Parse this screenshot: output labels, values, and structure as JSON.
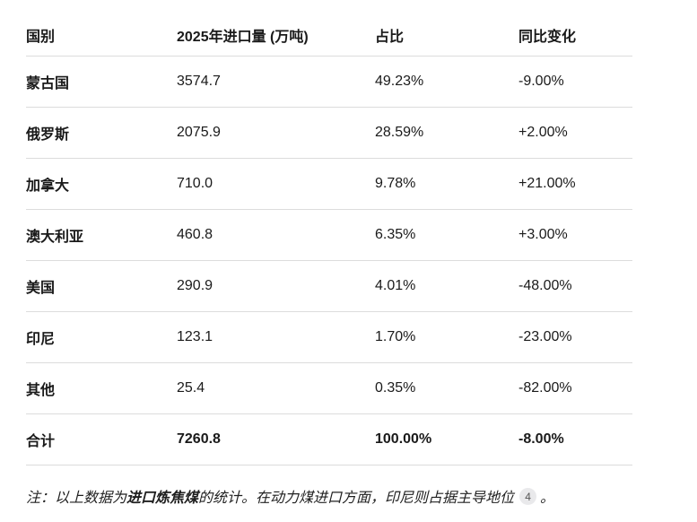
{
  "colors": {
    "background": "#ffffff",
    "text": "#1a1a1a",
    "divider": "#dcdcdc",
    "citation_badge_bg": "#e9e9eb",
    "citation_badge_text": "#555555"
  },
  "table": {
    "headers": [
      "国别",
      "2025年进口量 (万吨)",
      "占比",
      "同比变化"
    ],
    "rows": [
      {
        "country": "蒙古国",
        "volume": "3574.7",
        "share": "49.23%",
        "yoy": "-9.00%"
      },
      {
        "country": "俄罗斯",
        "volume": "2075.9",
        "share": "28.59%",
        "yoy": "+2.00%"
      },
      {
        "country": "加拿大",
        "volume": "710.0",
        "share": "9.78%",
        "yoy": "+21.00%"
      },
      {
        "country": "澳大利亚",
        "volume": "460.8",
        "share": "6.35%",
        "yoy": "+3.00%"
      },
      {
        "country": "美国",
        "volume": "290.9",
        "share": "4.01%",
        "yoy": "-48.00%"
      },
      {
        "country": "印尼",
        "volume": "123.1",
        "share": "1.70%",
        "yoy": "-23.00%"
      },
      {
        "country": "其他",
        "volume": "25.4",
        "share": "0.35%",
        "yoy": "-82.00%"
      }
    ],
    "total": {
      "country": "合计",
      "volume": "7260.8",
      "share": "100.00%",
      "yoy": "-8.00%"
    }
  },
  "note": {
    "prefix": "注：以上数据为",
    "emphasis": "进口炼焦煤",
    "body": "的统计。在动力煤进口方面，印尼则占据主导地位",
    "citation": "4",
    "suffix": "。"
  },
  "chart_data": {
    "type": "table",
    "columns": [
      "国别",
      "2025年进口量 (万吨)",
      "占比",
      "同比变化"
    ],
    "rows": [
      [
        "蒙古国",
        3574.7,
        "49.23%",
        "-9.00%"
      ],
      [
        "俄罗斯",
        2075.9,
        "28.59%",
        "+2.00%"
      ],
      [
        "加拿大",
        710.0,
        "9.78%",
        "+21.00%"
      ],
      [
        "澳大利亚",
        460.8,
        "6.35%",
        "+3.00%"
      ],
      [
        "美国",
        290.9,
        "4.01%",
        "-48.00%"
      ],
      [
        "印尼",
        123.1,
        "1.70%",
        "-23.00%"
      ],
      [
        "其他",
        25.4,
        "0.35%",
        "-82.00%"
      ],
      [
        "合计",
        7260.8,
        "100.00%",
        "-8.00%"
      ]
    ],
    "note": "注：以上数据为进口炼焦煤的统计。在动力煤进口方面，印尼则占据主导地位 [4]。"
  }
}
